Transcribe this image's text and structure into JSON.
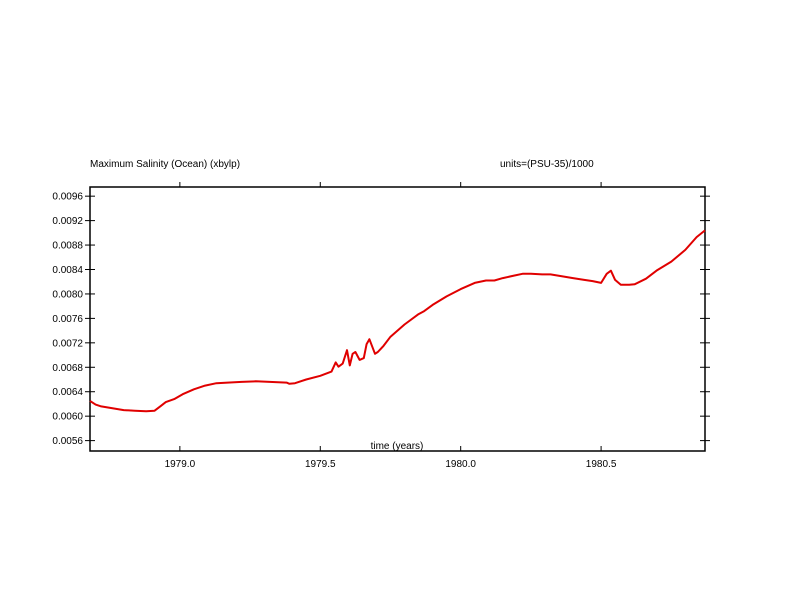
{
  "chart_data": {
    "type": "line",
    "title": "Maximum Salinity (Ocean) (xbylp)",
    "units_label": "units=(PSU-35)/1000",
    "xlabel": "time (years)",
    "ylabel": "",
    "xlim": [
      1978.68,
      1980.87
    ],
    "ylim": [
      0.00543,
      0.00975
    ],
    "x_ticks": [
      1979.0,
      1979.5,
      1980.0,
      1980.5
    ],
    "x_tick_labels": [
      "1979.0",
      "1979.5",
      "1980.0",
      "1980.5"
    ],
    "y_ticks": [
      0.0056,
      0.006,
      0.0064,
      0.0068,
      0.0072,
      0.0076,
      0.008,
      0.0084,
      0.0088,
      0.0092,
      0.0096
    ],
    "y_tick_labels": [
      "0.0056",
      "0.0060",
      "0.0064",
      "0.0068",
      "0.0072",
      "0.0076",
      "0.0080",
      "0.0084",
      "0.0088",
      "0.0092",
      "0.0096"
    ],
    "grid": false,
    "series": [
      {
        "color": "#e00000",
        "x": [
          1978.68,
          1978.7,
          1978.72,
          1978.76,
          1978.8,
          1978.84,
          1978.88,
          1978.91,
          1978.93,
          1978.95,
          1978.98,
          1979.01,
          1979.05,
          1979.09,
          1979.13,
          1979.17,
          1979.22,
          1979.27,
          1979.32,
          1979.38,
          1979.39,
          1979.41,
          1979.45,
          1979.5,
          1979.54,
          1979.555,
          1979.565,
          1979.58,
          1979.595,
          1979.605,
          1979.615,
          1979.625,
          1979.64,
          1979.655,
          1979.665,
          1979.675,
          1979.695,
          1979.705,
          1979.715,
          1979.725,
          1979.75,
          1979.8,
          1979.85,
          1979.87,
          1979.9,
          1979.95,
          1980.0,
          1980.05,
          1980.09,
          1980.12,
          1980.15,
          1980.19,
          1980.22,
          1980.25,
          1980.29,
          1980.32,
          1980.36,
          1980.4,
          1980.44,
          1980.47,
          1980.5,
          1980.52,
          1980.535,
          1980.55,
          1980.57,
          1980.6,
          1980.62,
          1980.66,
          1980.7,
          1980.75,
          1980.8,
          1980.84,
          1980.87
        ],
        "values": [
          0.00625,
          0.00619,
          0.00616,
          0.00613,
          0.0061,
          0.00609,
          0.00608,
          0.00609,
          0.00616,
          0.00623,
          0.00628,
          0.00636,
          0.00644,
          0.0065,
          0.00654,
          0.00655,
          0.00656,
          0.00657,
          0.00656,
          0.00655,
          0.00653,
          0.00654,
          0.0066,
          0.00666,
          0.00673,
          0.00688,
          0.00681,
          0.00686,
          0.00708,
          0.00683,
          0.00702,
          0.00705,
          0.00692,
          0.00695,
          0.00718,
          0.00726,
          0.00702,
          0.00705,
          0.0071,
          0.00715,
          0.0073,
          0.0075,
          0.00767,
          0.00772,
          0.00782,
          0.00796,
          0.00808,
          0.00818,
          0.00822,
          0.00822,
          0.00826,
          0.0083,
          0.00833,
          0.00833,
          0.00832,
          0.00832,
          0.00829,
          0.00826,
          0.00823,
          0.00821,
          0.00818,
          0.00833,
          0.00838,
          0.00823,
          0.00815,
          0.00815,
          0.00816,
          0.00825,
          0.00839,
          0.00853,
          0.00872,
          0.00893,
          0.00904
        ]
      }
    ]
  }
}
